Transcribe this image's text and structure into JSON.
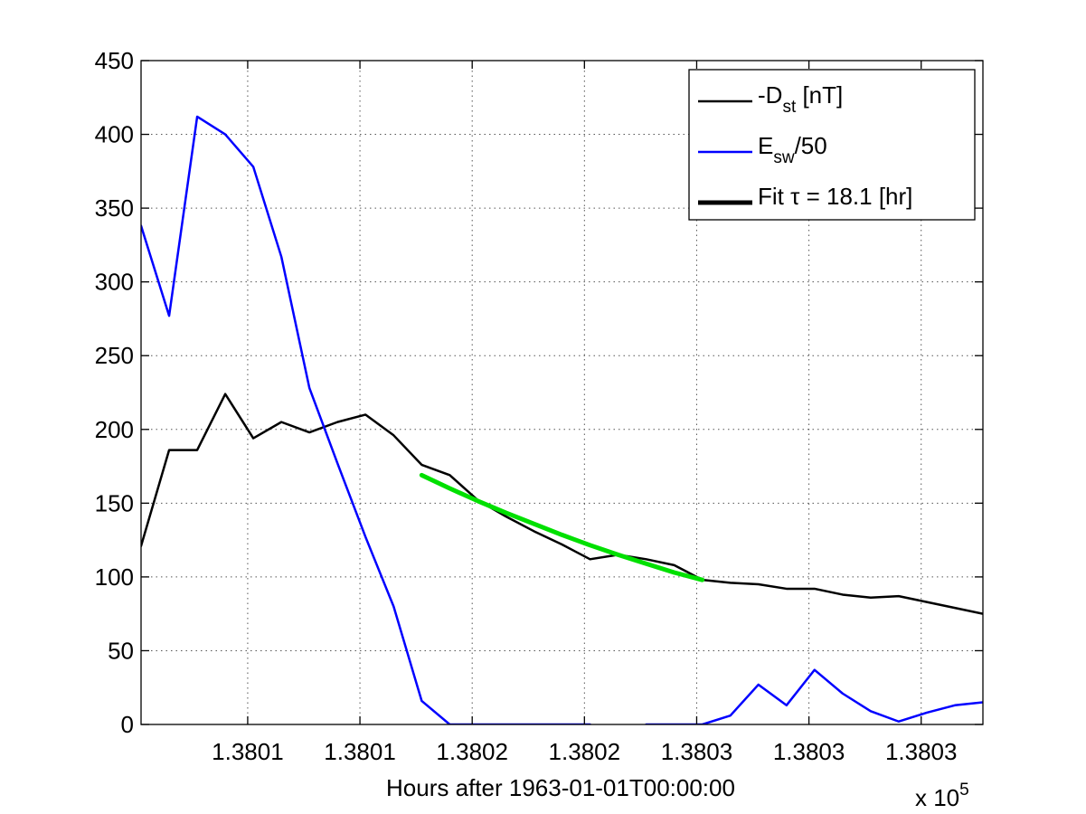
{
  "chart_data": {
    "type": "line",
    "title": "",
    "xlabel": "Hours after 1963-01-01T00:00:00",
    "ylabel": "",
    "x_exponent_label": "x 10",
    "x_exponent_power": "5",
    "xlim": [
      138006.2,
      138036.2
    ],
    "ylim": [
      0,
      450
    ],
    "grid": true,
    "legend_position": "top-right",
    "x_tick_values": [
      138010,
      138014,
      138018,
      138022,
      138026,
      138030,
      138034
    ],
    "x_tick_labels": [
      "1.3801",
      "1.3801",
      "1.3802",
      "1.3802",
      "1.3803",
      "1.3803",
      "1.3803"
    ],
    "y_tick_values": [
      0,
      50,
      100,
      150,
      200,
      250,
      300,
      350,
      400,
      450
    ],
    "y_tick_labels": [
      "0",
      "50",
      "100",
      "150",
      "200",
      "250",
      "300",
      "350",
      "400",
      "450"
    ],
    "series": [
      {
        "name_main": "-D",
        "name_sub": "st",
        "name_suffix": " [nT]",
        "color": "#000000",
        "width": 2.5,
        "x": [
          138006.2,
          138007.2,
          138008.2,
          138009.2,
          138010.2,
          138011.2,
          138012.2,
          138013.2,
          138014.2,
          138015.2,
          138016.2,
          138017.2,
          138018.2,
          138019.2,
          138020.2,
          138021.2,
          138022.2,
          138023.2,
          138024.2,
          138025.2,
          138026.2,
          138027.2,
          138028.2,
          138029.2,
          138030.2,
          138031.2,
          138032.2,
          138033.2,
          138034.2,
          138035.2,
          138036.2
        ],
        "values": [
          121,
          186,
          186,
          224,
          194,
          205,
          198,
          205,
          210,
          196,
          176,
          169,
          152,
          141,
          131,
          122,
          112,
          115,
          112,
          108,
          98,
          96,
          95,
          92,
          92,
          88,
          86,
          87,
          83,
          79,
          75
        ]
      },
      {
        "name_main": "E",
        "name_sub": "sw",
        "name_suffix": "/50",
        "color": "#0000ff",
        "width": 2.5,
        "segments": [
          {
            "x": [
              138006.2,
              138007.2,
              138008.2,
              138009.2,
              138010.2,
              138011.2,
              138012.2,
              138013.2,
              138014.2,
              138015.2,
              138016.2,
              138017.2,
              138018.2,
              138019.2,
              138020.2,
              138021.2,
              138022.2
            ],
            "values": [
              338,
              277,
              412,
              400,
              378,
              317,
              228,
              177,
              127,
              80,
              16,
              0,
              0,
              0,
              0,
              0,
              0
            ]
          },
          {
            "x": [
              138024.2,
              138025.2,
              138026.2,
              138027.2,
              138028.2,
              138029.2,
              138030.2,
              138031.2,
              138032.2,
              138033.2,
              138034.2,
              138035.2,
              138036.2
            ],
            "values": [
              0,
              0,
              0,
              6,
              27,
              13,
              37,
              21,
              9,
              2,
              8,
              13,
              15
            ]
          }
        ]
      },
      {
        "name_main": "Fit τ = 18.1 [hr]",
        "name_sub": "",
        "name_suffix": "",
        "color": "#000000",
        "legend_color": "#000000",
        "draw_color": "#00e000",
        "width": 5,
        "x": [
          138016.2,
          138017.2,
          138018.2,
          138019.2,
          138020.2,
          138021.2,
          138022.2,
          138023.2,
          138024.2,
          138025.2,
          138026.2
        ],
        "values": [
          169,
          160,
          151.5,
          143.5,
          136,
          128.5,
          121.5,
          115,
          109,
          103,
          98
        ]
      }
    ]
  }
}
